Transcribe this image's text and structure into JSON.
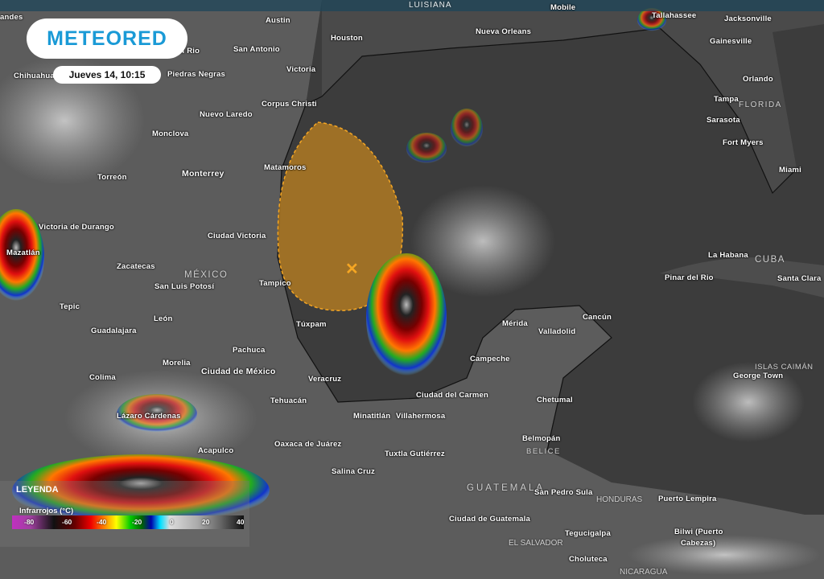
{
  "brand": {
    "logo": "METEORED",
    "datetime": "Jueves 14, 10:15"
  },
  "legend": {
    "title": "LEYENDA",
    "subtitle": "Infrarrojos (°C)",
    "ticks": [
      "-80",
      "-60",
      "-40",
      "-20",
      "0",
      "20",
      "40"
    ]
  },
  "colors": {
    "brand": "#1a9ad6",
    "hazard_area": "#d4901f",
    "marker": "#f5a623"
  },
  "marker_icon": "x-mark-icon",
  "regions": [
    "LUISIANA",
    "FLORIDA",
    "MÉXICO",
    "CUBA",
    "ISLAS CAIMÁN",
    "BELICE",
    "GUATEMALA",
    "HONDURAS",
    "EL SALVADOR",
    "NICARAGUA"
  ],
  "cities": [
    "Mobile",
    "Tallahassee",
    "Jacksonville",
    "Austin",
    "Houston",
    "Nueva Orleans",
    "Gainesville",
    "Del Rio",
    "San Antonio",
    "Victoria",
    "Piedras Negras",
    "Chihuahua",
    "Orlando",
    "Corpus Christi",
    "Tampa",
    "Nuevo Laredo",
    "Sarasota",
    "Monclova",
    "Fort Myers",
    "Matamoros",
    "Monterrey",
    "Miami",
    "Torreón",
    "andes",
    "Victoria de Durango",
    "Ciudad Victoria",
    "Mazatlán",
    "La Habana",
    "Zacatecas",
    "Pinar del Rio",
    "Santa Clara",
    "Tampico",
    "San Luis Potosí",
    "Tepic",
    "Túxpam",
    "León",
    "Cancún",
    "Mérida",
    "Valladolid",
    "Guadalajara",
    "Pachuca",
    "Campeche",
    "Morelia",
    "Ciudad de México",
    "George Town",
    "Colima",
    "Veracruz",
    "Ciudad del Carmen",
    "Tehuacán",
    "Chetumal",
    "Lázaro Cárdenas",
    "Minatitlán",
    "Villahermosa",
    "Belmopán",
    "Oaxaca de Juárez",
    "Acapulco",
    "Tuxtla Gutiérrez",
    "Salina Cruz",
    "San Pedro Sula",
    "Puerto Lempira",
    "Ciudad de Guatemala",
    "Tegucigalpa",
    "Bilwi (Puerto",
    "Cabezas)",
    "Choluteca"
  ]
}
